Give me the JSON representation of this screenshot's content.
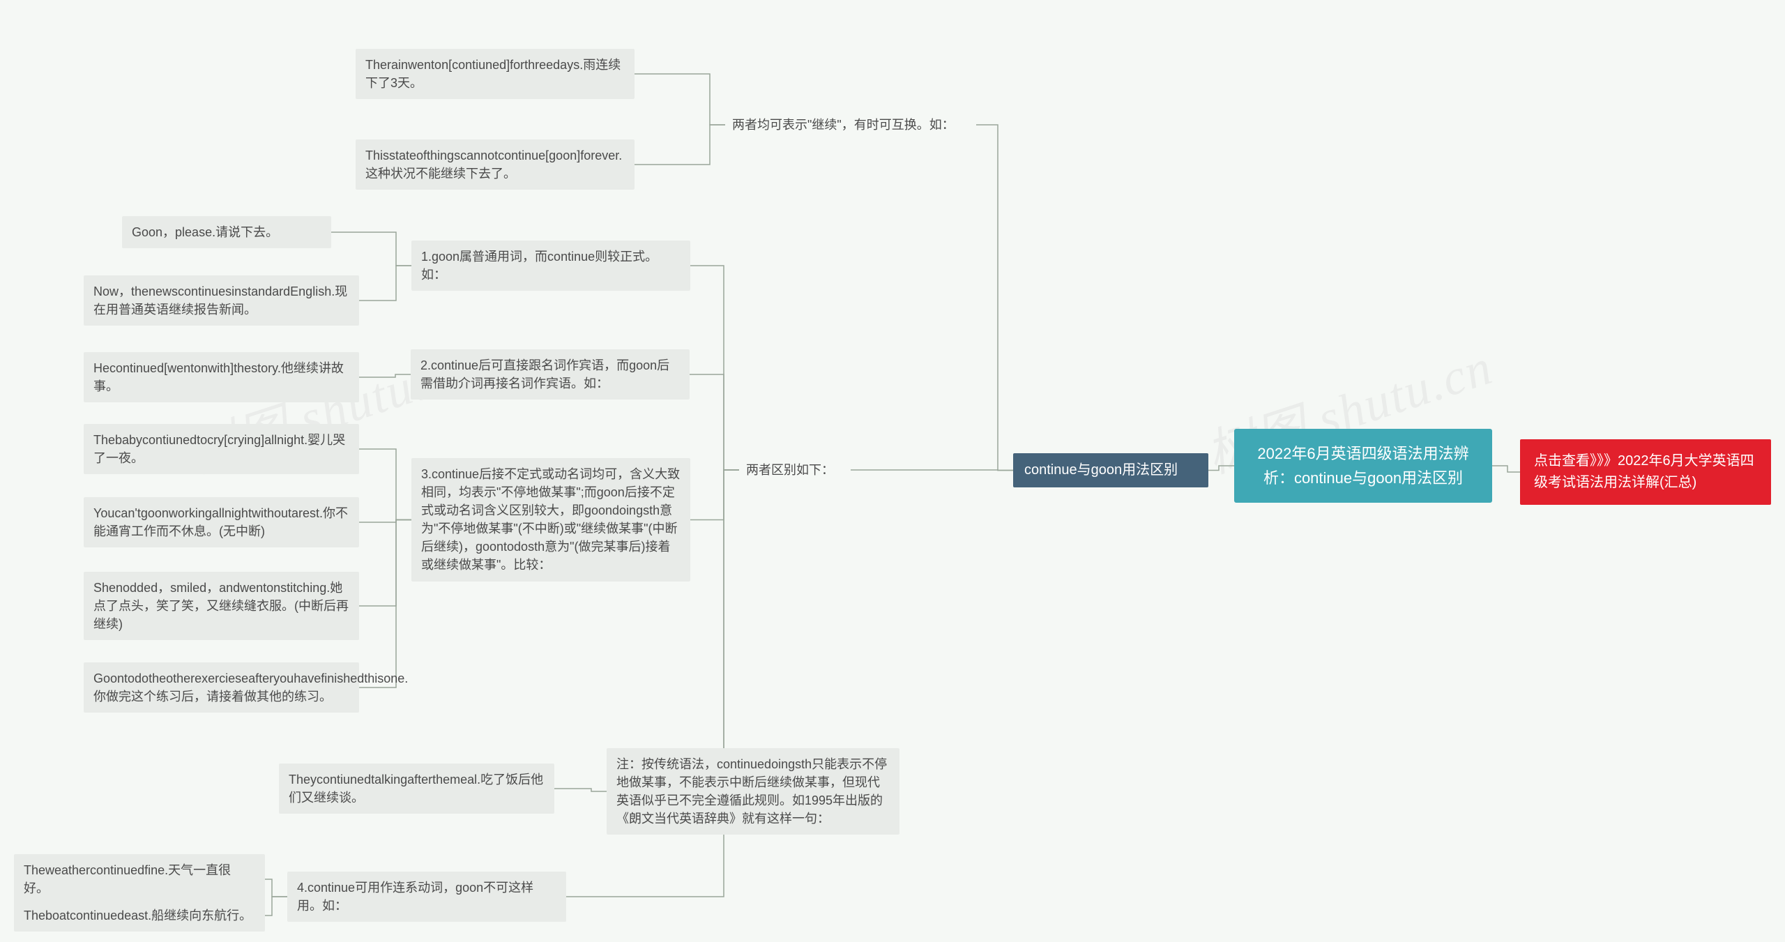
{
  "watermark": {
    "text": "树图 shutu.cn",
    "color": "#d8d8d8"
  },
  "colors": {
    "page_bg": "#f5f8f5",
    "leaf_bg": "#e8ebe8",
    "leaf_fg": "#4a4a4a",
    "connector": "#9aa69a",
    "root_bg": "#3fa8b5",
    "banner_bg": "#e2202c",
    "topic_bg": "#45637a",
    "white": "#ffffff"
  },
  "root": "2022年6月英语四级语法用法辨析：continue与goon用法区别",
  "banner": "点击查看》》》2022年6月大学英语四级考试语法用法详解(汇总)",
  "topic": "continue与goon用法区别",
  "sec_a": {
    "title": "两者均可表示\"继续\"，有时可互换。如：",
    "leaf1": "Therainwenton[contiuned]forthreedays.雨连续下了3天。",
    "leaf2": "Thisstateofthingscannotcontinue[goon]forever.这种状况不能继续下去了。"
  },
  "sec_b": {
    "title": "两者区别如下：",
    "p1": {
      "title": "1.goon属普通用词，而continue则较正式。如：",
      "leaf1": "Goon，please.请说下去。",
      "leaf2": "Now，thenewscontinuesinstandardEnglish.现在用普通英语继续报告新闻。"
    },
    "p2": {
      "title": "2.continue后可直接跟名词作宾语，而goon后需借助介词再接名词作宾语。如：",
      "leaf1": "Hecontinued[wentonwith]thestory.他继续讲故事。"
    },
    "p3": {
      "title": "3.continue后接不定式或动名词均可，含义大致相同，均表示\"不停地做某事\";而goon后接不定式或动名词含义区别较大，即goondoingsth意为\"不停地做某事\"(不中断)或\"继续做某事\"(中断后继续)，goontodosth意为\"(做完某事后)接着或继续做某事\"。比较：",
      "leaf1": "Thebabycontiunedtocry[crying]allnight.婴儿哭了一夜。",
      "leaf2": "Youcan'tgoonworkingallnightwithoutarest.你不能通宵工作而不休息。(无中断)",
      "leaf3": "Shenodded，smiled，andwentonstitching.她点了点头，笑了笑，又继续缝衣服。(中断后再继续)",
      "leaf4": "Goontodotheotherexercieseafteryouhavefinishedthisone.你做完这个练习后，请接着做其他的练习。"
    },
    "note": {
      "title": "注：按传统语法，continuedoingsth只能表示不停地做某事，不能表示中断后继续做某事，但现代英语似乎已不完全遵循此规则。如1995年出版的《朗文当代英语辞典》就有这样一句：",
      "leaf1": "Theycontiunedtalkingafterthemeal.吃了饭后他们又继续谈。"
    },
    "p4": {
      "title": "4.continue可用作连系动词，goon不可这样用。如：",
      "leaf1": "Theweathercontinuedfine.天气一直很好。",
      "leaf2": "Theboatcontinuedeast.船继续向东航行。"
    }
  }
}
